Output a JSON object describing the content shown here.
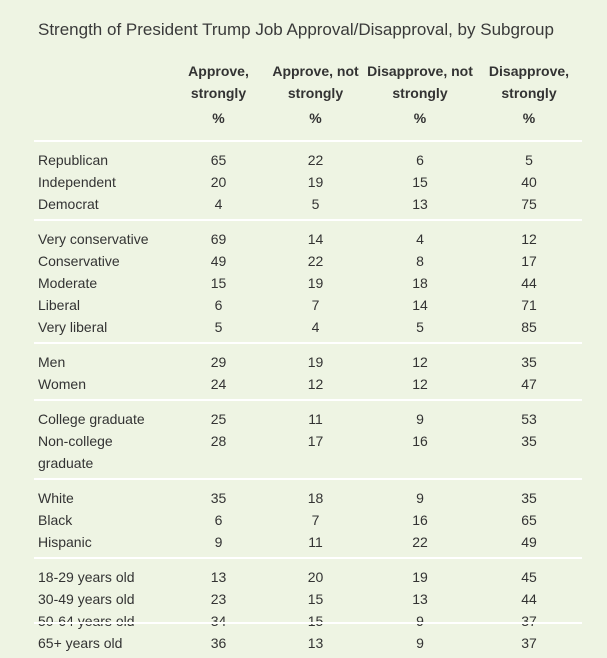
{
  "title": "Strength of President Trump Job Approval/Disapproval, by Subgroup",
  "columns": [
    {
      "line1": "Approve,",
      "line2": "strongly",
      "unit": "%"
    },
    {
      "line1": "Approve, not",
      "line2": "strongly",
      "unit": "%"
    },
    {
      "line1": "Disapprove, not",
      "line2": "strongly",
      "unit": "%"
    },
    {
      "line1": "Disapprove,",
      "line2": "strongly",
      "unit": "%"
    }
  ],
  "groups": [
    {
      "rows": [
        {
          "label": "Republican",
          "values": [
            65,
            22,
            6,
            5
          ]
        },
        {
          "label": "Independent",
          "values": [
            20,
            19,
            15,
            40
          ]
        },
        {
          "label": "Democrat",
          "values": [
            4,
            5,
            13,
            75
          ]
        }
      ]
    },
    {
      "rows": [
        {
          "label": "Very conservative",
          "values": [
            69,
            14,
            4,
            12
          ]
        },
        {
          "label": "Conservative",
          "values": [
            49,
            22,
            8,
            17
          ]
        },
        {
          "label": "Moderate",
          "values": [
            15,
            19,
            18,
            44
          ]
        },
        {
          "label": "Liberal",
          "values": [
            6,
            7,
            14,
            71
          ]
        },
        {
          "label": "Very liberal",
          "values": [
            5,
            4,
            5,
            85
          ]
        }
      ]
    },
    {
      "rows": [
        {
          "label": "Men",
          "values": [
            29,
            19,
            12,
            35
          ]
        },
        {
          "label": "Women",
          "values": [
            24,
            12,
            12,
            47
          ]
        }
      ]
    },
    {
      "rows": [
        {
          "label": "College graduate",
          "values": [
            25,
            11,
            9,
            53
          ]
        },
        {
          "label": "Non-college graduate",
          "values": [
            28,
            17,
            16,
            35
          ]
        }
      ]
    },
    {
      "rows": [
        {
          "label": "White",
          "values": [
            35,
            18,
            9,
            35
          ]
        },
        {
          "label": "Black",
          "values": [
            6,
            7,
            16,
            65
          ]
        },
        {
          "label": "Hispanic",
          "values": [
            9,
            11,
            22,
            49
          ]
        }
      ]
    },
    {
      "rows": [
        {
          "label": "18-29 years old",
          "values": [
            13,
            20,
            19,
            45
          ]
        },
        {
          "label": "30-49 years old",
          "values": [
            23,
            15,
            13,
            44
          ]
        },
        {
          "label": "50-64 years old",
          "values": [
            34,
            15,
            9,
            37
          ]
        },
        {
          "label": "65+ years old",
          "values": [
            36,
            13,
            9,
            37
          ]
        }
      ]
    }
  ],
  "chart_data": {
    "type": "table",
    "title": "Strength of President Trump Job Approval/Disapproval, by Subgroup",
    "unit": "%",
    "columns": [
      "Approve, strongly",
      "Approve, not strongly",
      "Disapprove, not strongly",
      "Disapprove, strongly"
    ],
    "rows": [
      {
        "label": "Republican",
        "values": [
          65,
          22,
          6,
          5
        ]
      },
      {
        "label": "Independent",
        "values": [
          20,
          19,
          15,
          40
        ]
      },
      {
        "label": "Democrat",
        "values": [
          4,
          5,
          13,
          75
        ]
      },
      {
        "label": "Very conservative",
        "values": [
          69,
          14,
          4,
          12
        ]
      },
      {
        "label": "Conservative",
        "values": [
          49,
          22,
          8,
          17
        ]
      },
      {
        "label": "Moderate",
        "values": [
          15,
          19,
          18,
          44
        ]
      },
      {
        "label": "Liberal",
        "values": [
          6,
          7,
          14,
          71
        ]
      },
      {
        "label": "Very liberal",
        "values": [
          5,
          4,
          5,
          85
        ]
      },
      {
        "label": "Men",
        "values": [
          29,
          19,
          12,
          35
        ]
      },
      {
        "label": "Women",
        "values": [
          24,
          12,
          12,
          47
        ]
      },
      {
        "label": "College graduate",
        "values": [
          25,
          11,
          9,
          53
        ]
      },
      {
        "label": "Non-college graduate",
        "values": [
          28,
          17,
          16,
          35
        ]
      },
      {
        "label": "White",
        "values": [
          35,
          18,
          9,
          35
        ]
      },
      {
        "label": "Black",
        "values": [
          6,
          7,
          16,
          65
        ]
      },
      {
        "label": "Hispanic",
        "values": [
          9,
          11,
          22,
          49
        ]
      },
      {
        "label": "18-29 years old",
        "values": [
          13,
          20,
          19,
          45
        ]
      },
      {
        "label": "30-49 years old",
        "values": [
          23,
          15,
          13,
          44
        ]
      },
      {
        "label": "50-64 years old",
        "values": [
          34,
          15,
          9,
          37
        ]
      },
      {
        "label": "65+ years old",
        "values": [
          36,
          13,
          9,
          37
        ]
      }
    ]
  }
}
